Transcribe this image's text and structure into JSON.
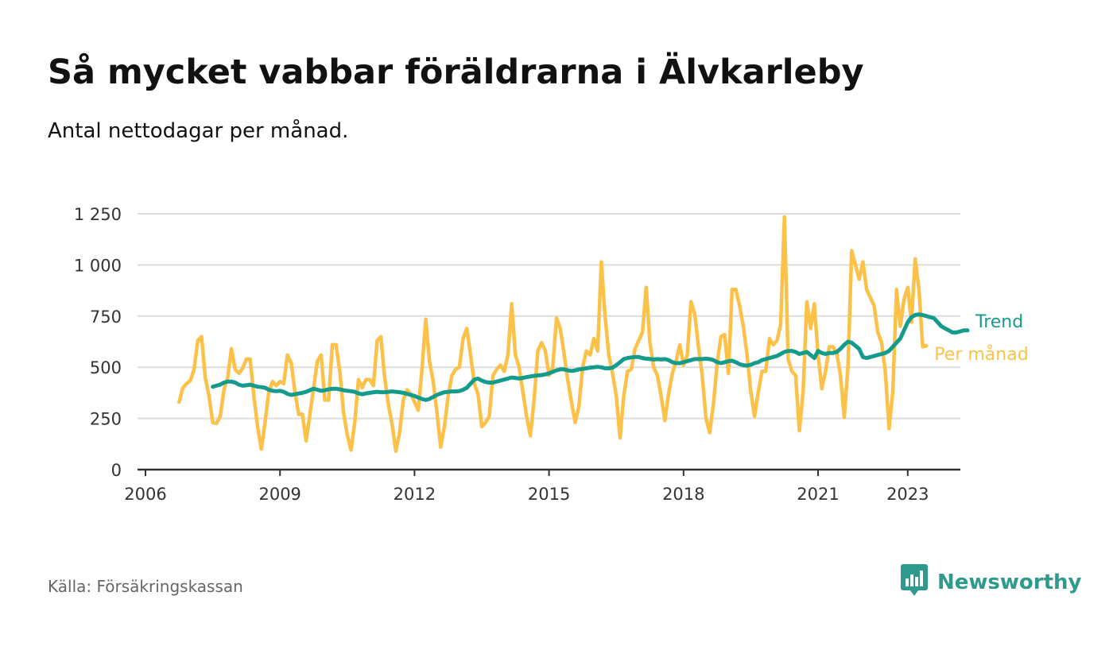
{
  "header": {
    "title": "Så mycket vabbar föräldrarna i Älvkarleby",
    "subtitle": "Antal nettodagar per månad."
  },
  "footer": {
    "source": "Källa: Försäkringskassan",
    "brand": "Newsworthy",
    "brand_icon": "bar-chart-speech-bubble-icon"
  },
  "colors": {
    "monthly": "#fcc148",
    "trend": "#159b8c",
    "grid": "#dddddd",
    "axis": "#333333",
    "brand": "#2e9a8e"
  },
  "chart_data": {
    "type": "line",
    "title": "Så mycket vabbar föräldrarna i Älvkarleby",
    "subtitle": "Antal nettodagar per månad.",
    "xlabel": "",
    "ylabel": "",
    "xlim": [
      2006,
      2024.5
    ],
    "ylim": [
      0,
      1250
    ],
    "x_ticks": [
      2006,
      2009,
      2012,
      2015,
      2018,
      2021,
      2023
    ],
    "x_tick_labels": [
      "2006",
      "2009",
      "2012",
      "2015",
      "2018",
      "2021",
      "2023"
    ],
    "y_ticks": [
      0,
      250,
      500,
      750,
      1000,
      1250
    ],
    "y_tick_labels": [
      "0",
      "250",
      "500",
      "750",
      "1 000",
      "1 250"
    ],
    "grid": true,
    "legend": "end-of-line labels",
    "series": [
      {
        "name": "Per månad",
        "start": 2006.75,
        "step": 0.0833333,
        "values": [
          330,
          400,
          420,
          435,
          490,
          630,
          650,
          450,
          360,
          230,
          225,
          260,
          390,
          450,
          590,
          490,
          470,
          495,
          540,
          540,
          360,
          210,
          100,
          230,
          380,
          430,
          410,
          430,
          420,
          560,
          520,
          380,
          270,
          270,
          140,
          270,
          400,
          530,
          560,
          340,
          340,
          610,
          610,
          480,
          280,
          170,
          95,
          230,
          440,
          400,
          440,
          440,
          410,
          630,
          650,
          450,
          320,
          220,
          90,
          180,
          340,
          390,
          370,
          330,
          290,
          490,
          735,
          530,
          430,
          280,
          110,
          210,
          360,
          460,
          490,
          500,
          640,
          690,
          560,
          420,
          370,
          210,
          230,
          260,
          460,
          490,
          510,
          480,
          560,
          810,
          560,
          500,
          380,
          260,
          165,
          340,
          580,
          620,
          580,
          460,
          500,
          740,
          690,
          570,
          440,
          330,
          230,
          310,
          500,
          580,
          560,
          640,
          580,
          1015,
          750,
          560,
          470,
          360,
          155,
          360,
          480,
          490,
          590,
          630,
          670,
          890,
          620,
          500,
          460,
          360,
          240,
          370,
          470,
          530,
          610,
          510,
          560,
          820,
          760,
          600,
          460,
          250,
          180,
          320,
          520,
          650,
          660,
          470,
          880,
          880,
          800,
          700,
          560,
          380,
          260,
          380,
          480,
          480,
          640,
          610,
          630,
          710,
          1235,
          540,
          480,
          460,
          190,
          380,
          820,
          690,
          810,
          560,
          395,
          480,
          600,
          600,
          570,
          460,
          255,
          500,
          1070,
          1000,
          930,
          1015,
          880,
          840,
          800,
          670,
          620,
          480,
          200,
          380,
          880,
          700,
          830,
          890,
          720,
          1030,
          880,
          600,
          605
        ]
      },
      {
        "name": "Trend",
        "start": 2007.5,
        "step": 0.0833333,
        "values": [
          405,
          410,
          415,
          425,
          430,
          430,
          425,
          415,
          410,
          412,
          415,
          410,
          405,
          403,
          400,
          390,
          385,
          383,
          385,
          380,
          370,
          365,
          368,
          372,
          375,
          380,
          388,
          395,
          390,
          385,
          388,
          392,
          395,
          395,
          392,
          388,
          385,
          383,
          380,
          372,
          368,
          372,
          375,
          378,
          380,
          378,
          378,
          380,
          382,
          380,
          378,
          375,
          370,
          365,
          360,
          352,
          345,
          340,
          345,
          355,
          365,
          372,
          378,
          380,
          382,
          382,
          384,
          390,
          400,
          420,
          440,
          445,
          435,
          428,
          425,
          425,
          430,
          435,
          440,
          445,
          450,
          448,
          445,
          448,
          452,
          455,
          458,
          460,
          462,
          465,
          470,
          478,
          485,
          490,
          490,
          485,
          482,
          485,
          490,
          492,
          495,
          498,
          500,
          502,
          500,
          495,
          495,
          498,
          510,
          525,
          540,
          545,
          548,
          550,
          550,
          545,
          542,
          540,
          538,
          540,
          538,
          540,
          535,
          525,
          520,
          520,
          525,
          530,
          535,
          540,
          540,
          540,
          542,
          540,
          535,
          525,
          520,
          525,
          530,
          532,
          525,
          515,
          510,
          508,
          512,
          520,
          525,
          535,
          540,
          545,
          550,
          555,
          565,
          575,
          580,
          580,
          575,
          565,
          570,
          575,
          560,
          545,
          580,
          570,
          565,
          570,
          570,
          575,
          590,
          610,
          625,
          620,
          605,
          590,
          550,
          545,
          550,
          555,
          560,
          565,
          570,
          580,
          600,
          620,
          640,
          680,
          720,
          745,
          755,
          758,
          755,
          750,
          745,
          740,
          720,
          700,
          690,
          680,
          670,
          670,
          675,
          680,
          680
        ]
      }
    ]
  }
}
